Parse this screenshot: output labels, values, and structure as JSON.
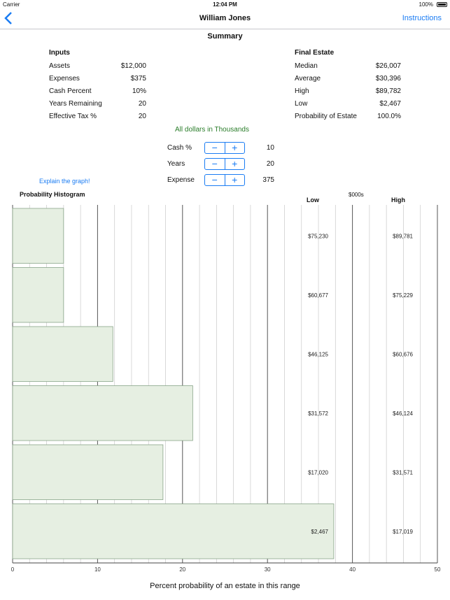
{
  "status_bar": {
    "carrier": "Carrier",
    "time": "12:04 PM",
    "battery": "100%"
  },
  "nav": {
    "back_icon": "chevron-left-icon",
    "title": "William Jones",
    "instructions": "Instructions"
  },
  "summary_title": "Summary",
  "inputs": {
    "heading": "Inputs",
    "rows": [
      {
        "label": "Assets",
        "value": "$12,000"
      },
      {
        "label": "Expenses",
        "value": "$375"
      },
      {
        "label": "Cash Percent",
        "value": "10%"
      },
      {
        "label": "Years Remaining",
        "value": "20"
      },
      {
        "label": "Effective Tax %",
        "value": "20"
      }
    ]
  },
  "final_estate": {
    "heading": "Final Estate",
    "rows": [
      {
        "label": "Median",
        "value": "$26,007"
      },
      {
        "label": "Average",
        "value": "$30,396"
      },
      {
        "label": "High",
        "value": "$89,782"
      },
      {
        "label": "Low",
        "value": "$2,467"
      },
      {
        "label": "Probability of Estate",
        "value": "100.0%"
      }
    ]
  },
  "units_note": "All dollars in Thousands",
  "steppers": [
    {
      "label": "Cash %",
      "value": "10"
    },
    {
      "label": "Years",
      "value": "20"
    },
    {
      "label": "Expense",
      "value": "375"
    }
  ],
  "explain_link": "Explain the graph!",
  "chart_data": {
    "type": "bar",
    "orientation": "horizontal",
    "title": "Probability Histogram",
    "xlabel": "Percent probability of an estate in this range",
    "xlim": [
      0,
      50
    ],
    "x_ticks": [
      "0",
      "10",
      "20",
      "30",
      "40",
      "50"
    ],
    "column_headers": {
      "low": "Low",
      "units": "$000s",
      "high": "High"
    },
    "bins": [
      {
        "low": "$75,230",
        "high": "$89,781",
        "value": 6
      },
      {
        "low": "$60,677",
        "high": "$75,229",
        "value": 6
      },
      {
        "low": "$46,125",
        "high": "$60,676",
        "value": 11.8
      },
      {
        "low": "$31,572",
        "high": "$46,124",
        "value": 21.2
      },
      {
        "low": "$17,020",
        "high": "$31,571",
        "value": 17.7
      },
      {
        "low": "$2,467",
        "high": "$17,019",
        "value": 37.8
      }
    ],
    "bar_color": "#e6efe2",
    "bar_stroke": "#8aa58a",
    "grid": true
  }
}
